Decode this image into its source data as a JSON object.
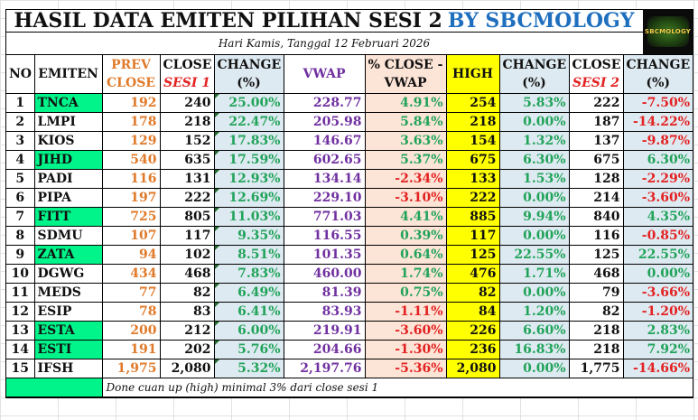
{
  "title": {
    "main": "HASIL DATA EMITEN PILIHAN SESI 2",
    "brand": "BY SBCMOLOGY"
  },
  "subtitle": "Hari Kamis, Tanggal 12 Februari 2026",
  "logo": {
    "text": "SBCMOLOGY"
  },
  "colors": {
    "highlight_green": "#00f48a",
    "positive": "#21a35a",
    "negative": "#e32222",
    "vwap_purple": "#7030a0",
    "prev_orange": "#e07a2a",
    "high_yellow": "#ffff00",
    "brand_blue": "#1f6fbf"
  },
  "headers": {
    "no": "NO",
    "emiten": "EMITEN",
    "prev_l1": "PREV",
    "prev_l2": "CLOSE",
    "close1_l1": "CLOSE",
    "close1_l2": "SESI 1",
    "chg1_l1": "CHANGE",
    "chg1_l2": "(%)",
    "vwap": "VWAP",
    "pct_l1": "% CLOSE -",
    "pct_l2": "VWAP",
    "high": "HIGH",
    "chg2_l1": "CHANGE",
    "chg2_l2": "(%)",
    "close2_l1": "CLOSE",
    "close2_l2": "SESI 2",
    "chg3_l1": "CHANGE",
    "chg3_l2": "(%)"
  },
  "rows": [
    {
      "no": "1",
      "emiten": "TNCA",
      "highlight": true,
      "prev": "192",
      "close1": "240",
      "chg1": "25.00%",
      "vwap": "228.77",
      "pct": "4.91%",
      "high": "254",
      "chg2": "5.83%",
      "close2": "222",
      "chg3": "-7.50%"
    },
    {
      "no": "2",
      "emiten": "LMPI",
      "highlight": false,
      "prev": "178",
      "close1": "218",
      "chg1": "22.47%",
      "vwap": "205.98",
      "pct": "5.84%",
      "high": "218",
      "chg2": "0.00%",
      "close2": "187",
      "chg3": "-14.22%"
    },
    {
      "no": "3",
      "emiten": "KIOS",
      "highlight": false,
      "prev": "129",
      "close1": "152",
      "chg1": "17.83%",
      "vwap": "146.67",
      "pct": "3.63%",
      "high": "154",
      "chg2": "1.32%",
      "close2": "137",
      "chg3": "-9.87%"
    },
    {
      "no": "4",
      "emiten": "JIHD",
      "highlight": true,
      "prev": "540",
      "close1": "635",
      "chg1": "17.59%",
      "vwap": "602.65",
      "pct": "5.37%",
      "high": "675",
      "chg2": "6.30%",
      "close2": "675",
      "chg3": "6.30%"
    },
    {
      "no": "5",
      "emiten": "PADI",
      "highlight": false,
      "prev": "116",
      "close1": "131",
      "chg1": "12.93%",
      "vwap": "134.14",
      "pct": "-2.34%",
      "high": "133",
      "chg2": "1.53%",
      "close2": "128",
      "chg3": "-2.29%"
    },
    {
      "no": "6",
      "emiten": "PIPA",
      "highlight": false,
      "prev": "197",
      "close1": "222",
      "chg1": "12.69%",
      "vwap": "229.10",
      "pct": "-3.10%",
      "high": "222",
      "chg2": "0.00%",
      "close2": "214",
      "chg3": "-3.60%"
    },
    {
      "no": "7",
      "emiten": "FITT",
      "highlight": true,
      "prev": "725",
      "close1": "805",
      "chg1": "11.03%",
      "vwap": "771.03",
      "pct": "4.41%",
      "high": "885",
      "chg2": "9.94%",
      "close2": "840",
      "chg3": "4.35%"
    },
    {
      "no": "8",
      "emiten": "SDMU",
      "highlight": false,
      "prev": "107",
      "close1": "117",
      "chg1": "9.35%",
      "vwap": "116.55",
      "pct": "0.39%",
      "high": "117",
      "chg2": "0.00%",
      "close2": "116",
      "chg3": "-0.85%"
    },
    {
      "no": "9",
      "emiten": "ZATA",
      "highlight": true,
      "prev": "94",
      "close1": "102",
      "chg1": "8.51%",
      "vwap": "101.35",
      "pct": "0.64%",
      "high": "125",
      "chg2": "22.55%",
      "close2": "125",
      "chg3": "22.55%"
    },
    {
      "no": "10",
      "emiten": "DGWG",
      "highlight": false,
      "prev": "434",
      "close1": "468",
      "chg1": "7.83%",
      "vwap": "460.00",
      "pct": "1.74%",
      "high": "476",
      "chg2": "1.71%",
      "close2": "468",
      "chg3": "0.00%"
    },
    {
      "no": "11",
      "emiten": "MEDS",
      "highlight": false,
      "prev": "77",
      "close1": "82",
      "chg1": "6.49%",
      "vwap": "81.39",
      "pct": "0.75%",
      "high": "82",
      "chg2": "0.00%",
      "close2": "79",
      "chg3": "-3.66%"
    },
    {
      "no": "12",
      "emiten": "ESIP",
      "highlight": false,
      "prev": "78",
      "close1": "83",
      "chg1": "6.41%",
      "vwap": "83.93",
      "pct": "-1.11%",
      "high": "84",
      "chg2": "1.20%",
      "close2": "82",
      "chg3": "-1.20%"
    },
    {
      "no": "13",
      "emiten": "ESTA",
      "highlight": true,
      "prev": "200",
      "close1": "212",
      "chg1": "6.00%",
      "vwap": "219.91",
      "pct": "-3.60%",
      "high": "226",
      "chg2": "6.60%",
      "close2": "218",
      "chg3": "2.83%"
    },
    {
      "no": "14",
      "emiten": "ESTI",
      "highlight": true,
      "prev": "191",
      "close1": "202",
      "chg1": "5.76%",
      "vwap": "204.66",
      "pct": "-1.30%",
      "high": "236",
      "chg2": "16.83%",
      "close2": "218",
      "chg3": "7.92%"
    },
    {
      "no": "15",
      "emiten": "IFSH",
      "highlight": false,
      "prev": "1,975",
      "close1": "2,080",
      "chg1": "5.32%",
      "vwap": "2,197.76",
      "pct": "-5.36%",
      "high": "2,080",
      "chg2": "0.00%",
      "close2": "1,775",
      "chg3": "-14.66%"
    }
  ],
  "footer": {
    "note": "Done cuan up (high) minimal 3% dari close sesi 1"
  }
}
